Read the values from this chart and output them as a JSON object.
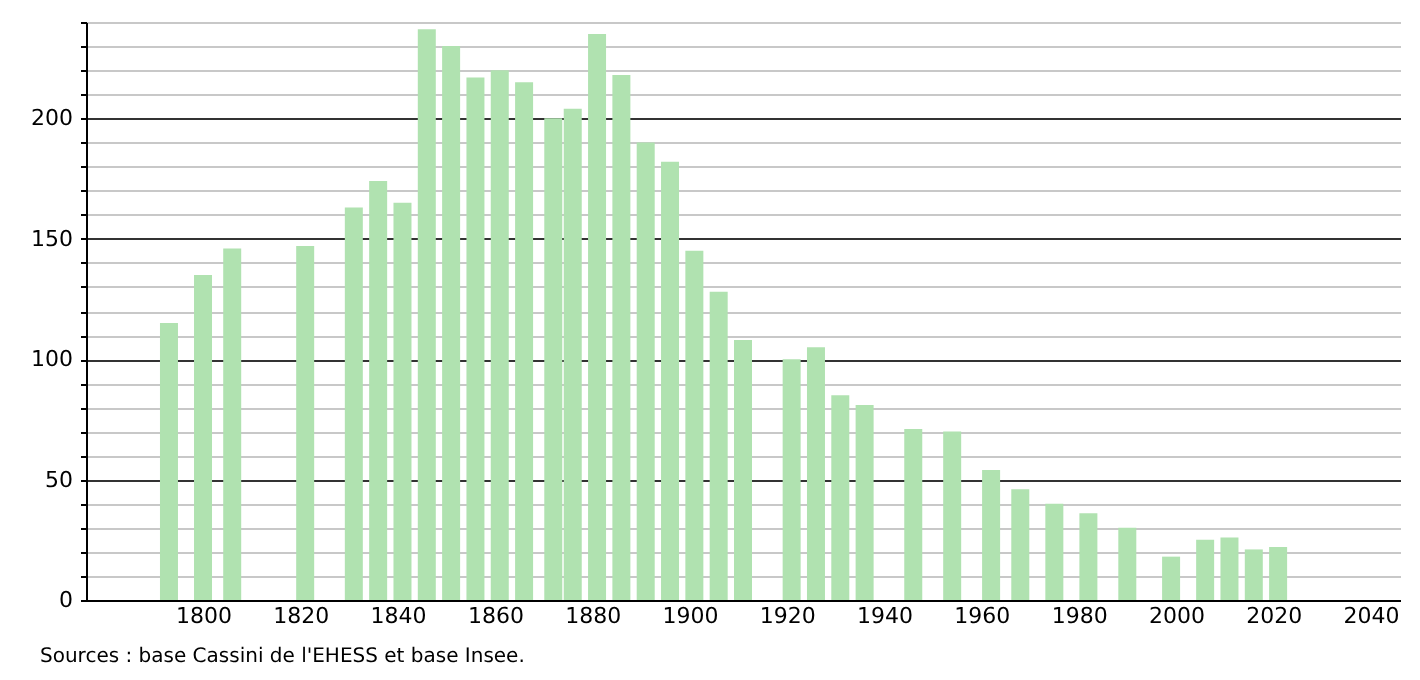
{
  "chart_data": {
    "type": "bar",
    "x": [
      1793,
      1800,
      1806,
      1821,
      1831,
      1836,
      1841,
      1846,
      1851,
      1856,
      1861,
      1866,
      1872,
      1876,
      1881,
      1886,
      1891,
      1896,
      1901,
      1906,
      1911,
      1921,
      1926,
      1931,
      1936,
      1946,
      1954,
      1962,
      1968,
      1975,
      1982,
      1990,
      1999,
      2006,
      2011,
      2016,
      2021
    ],
    "values": [
      115,
      135,
      146,
      147,
      163,
      174,
      165,
      237,
      230,
      217,
      220,
      215,
      200,
      204,
      235,
      218,
      190,
      182,
      145,
      128,
      108,
      100,
      105,
      85,
      81,
      71,
      70,
      54,
      46,
      40,
      36,
      30,
      18,
      25,
      26,
      21,
      22
    ],
    "color": "#b0e2b0",
    "xlim": [
      1778,
      2044
    ],
    "xticks": [
      1800,
      1820,
      1840,
      1860,
      1880,
      1900,
      1920,
      1940,
      1960,
      1980,
      2000,
      2020,
      2040
    ],
    "ylim": [
      0,
      240
    ],
    "yticks": [
      0,
      {
        "value": 10,
        "label": null
      },
      {
        "value": 20,
        "label": null
      },
      {
        "value": 30,
        "label": null
      },
      {
        "value": 40,
        "label": null
      },
      50,
      {
        "value": 60,
        "label": null
      },
      {
        "value": 70,
        "label": null
      },
      {
        "value": 80,
        "label": null
      },
      {
        "value": 90,
        "label": null
      },
      100,
      {
        "value": 110,
        "label": null
      },
      {
        "value": 120,
        "label": null
      },
      {
        "value": 130,
        "label": null
      },
      {
        "value": 140,
        "label": null
      },
      150,
      {
        "value": 160,
        "label": null
      },
      {
        "value": 170,
        "label": null
      },
      {
        "value": 180,
        "label": null
      },
      {
        "value": 190,
        "label": null
      },
      200,
      {
        "value": 210,
        "label": null
      },
      {
        "value": 220,
        "label": null
      },
      {
        "value": 230,
        "label": null
      },
      {
        "value": 240,
        "label": null
      }
    ],
    "grid": "y",
    "annotations": [
      "Sources : base Cassini de l'EHESS et base Insee."
    ]
  }
}
